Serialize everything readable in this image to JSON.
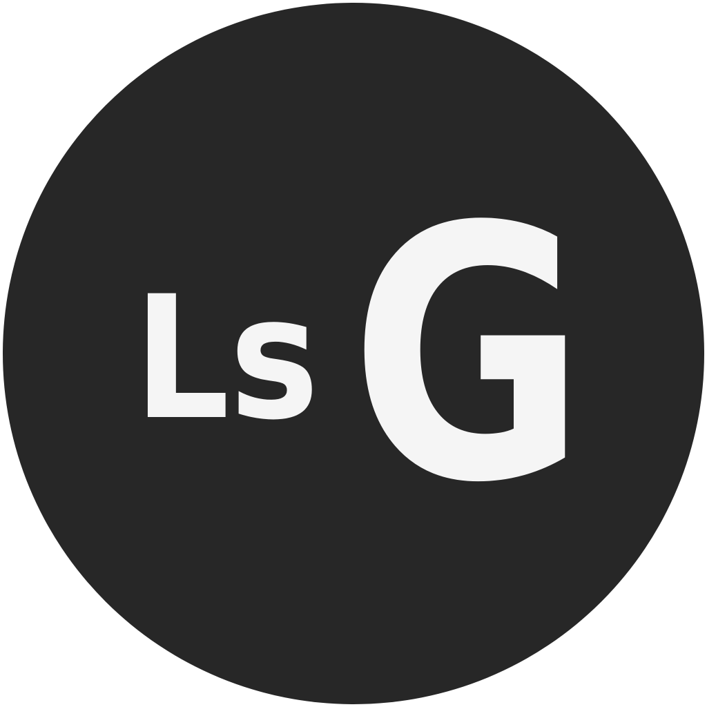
{
  "logo": {
    "monogram_small": "Ls",
    "monogram_large": "G",
    "colors": {
      "page_background": "#ffffff",
      "disc": "#272727",
      "lettering": "#f5f5f5"
    }
  }
}
